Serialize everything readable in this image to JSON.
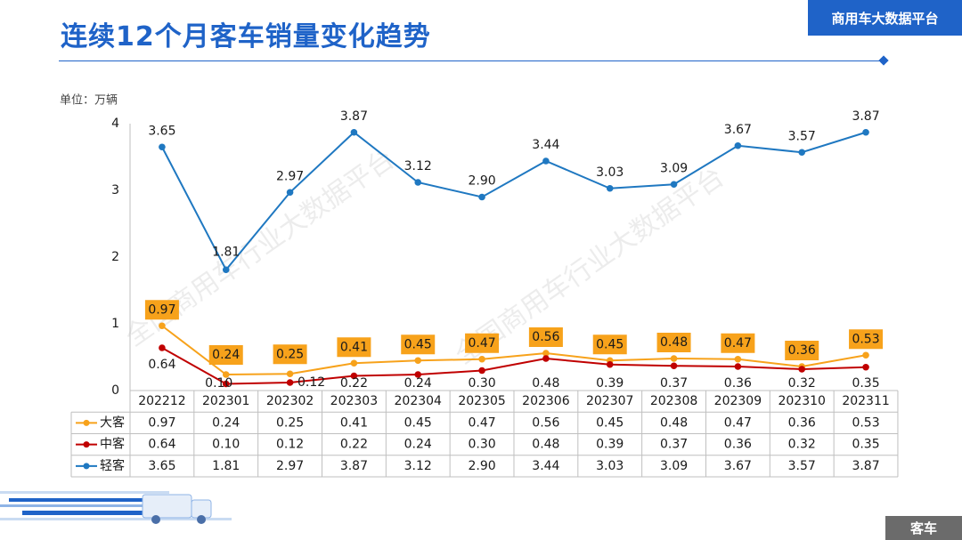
{
  "page": {
    "title": "连续12个月客车销量变化趋势",
    "brand": "商用车大数据平台",
    "footer_tag": "客车",
    "watermark": "全国商用车行业大数据平台"
  },
  "chart_data": {
    "type": "line",
    "unit_label": "单位：万辆",
    "categories": [
      "202212",
      "202301",
      "202302",
      "202303",
      "202304",
      "202305",
      "202306",
      "202307",
      "202308",
      "202309",
      "202310",
      "202311"
    ],
    "ylim": [
      0,
      4
    ],
    "yticks": [
      0,
      1,
      2,
      3,
      4
    ],
    "grid": false,
    "legend": "data-table",
    "series": [
      {
        "name": "大客",
        "color": "#f7a21b",
        "label_style": "orange-box",
        "values": [
          0.97,
          0.24,
          0.25,
          0.41,
          0.45,
          0.47,
          0.56,
          0.45,
          0.48,
          0.47,
          0.36,
          0.53
        ]
      },
      {
        "name": "中客",
        "color": "#c00000",
        "label_style": "plain",
        "values": [
          0.64,
          0.1,
          0.12,
          0.22,
          0.24,
          0.3,
          0.48,
          0.39,
          0.37,
          0.36,
          0.32,
          0.35
        ]
      },
      {
        "name": "轻客",
        "color": "#1f78c1",
        "label_style": "plain",
        "values": [
          3.65,
          1.81,
          2.97,
          3.87,
          3.12,
          2.9,
          3.44,
          3.03,
          3.09,
          3.67,
          3.57,
          3.87
        ]
      }
    ]
  }
}
